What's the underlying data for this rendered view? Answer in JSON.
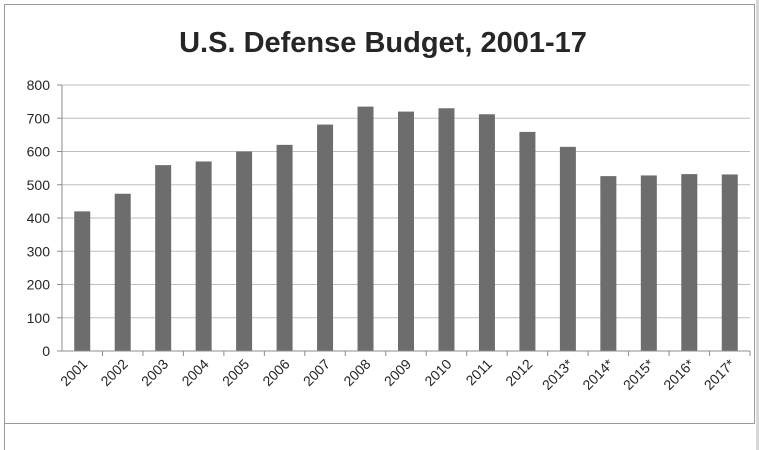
{
  "chart_data": {
    "type": "bar",
    "title": "U.S. Defense Budget, 2001-17",
    "xlabel": "",
    "ylabel": "",
    "categories": [
      "2001",
      "2002",
      "2003",
      "2004",
      "2005",
      "2006",
      "2007",
      "2008",
      "2009",
      "2010",
      "2011",
      "2012",
      "2013*",
      "2014*",
      "2015*",
      "2016*",
      "2017*"
    ],
    "values": [
      420,
      473,
      559,
      570,
      600,
      620,
      681,
      735,
      720,
      730,
      712,
      659,
      614,
      526,
      528,
      532,
      531
    ],
    "ylim": [
      0,
      800
    ],
    "yticks": [
      "0",
      "100",
      "200",
      "300",
      "400",
      "500",
      "600",
      "700",
      "800"
    ],
    "grid": true,
    "legend": "none",
    "colors": {
      "bar": "#6d6d6d",
      "grid": "#bfbfbf",
      "axis": "#8c8c8c",
      "text": "#262626"
    }
  }
}
